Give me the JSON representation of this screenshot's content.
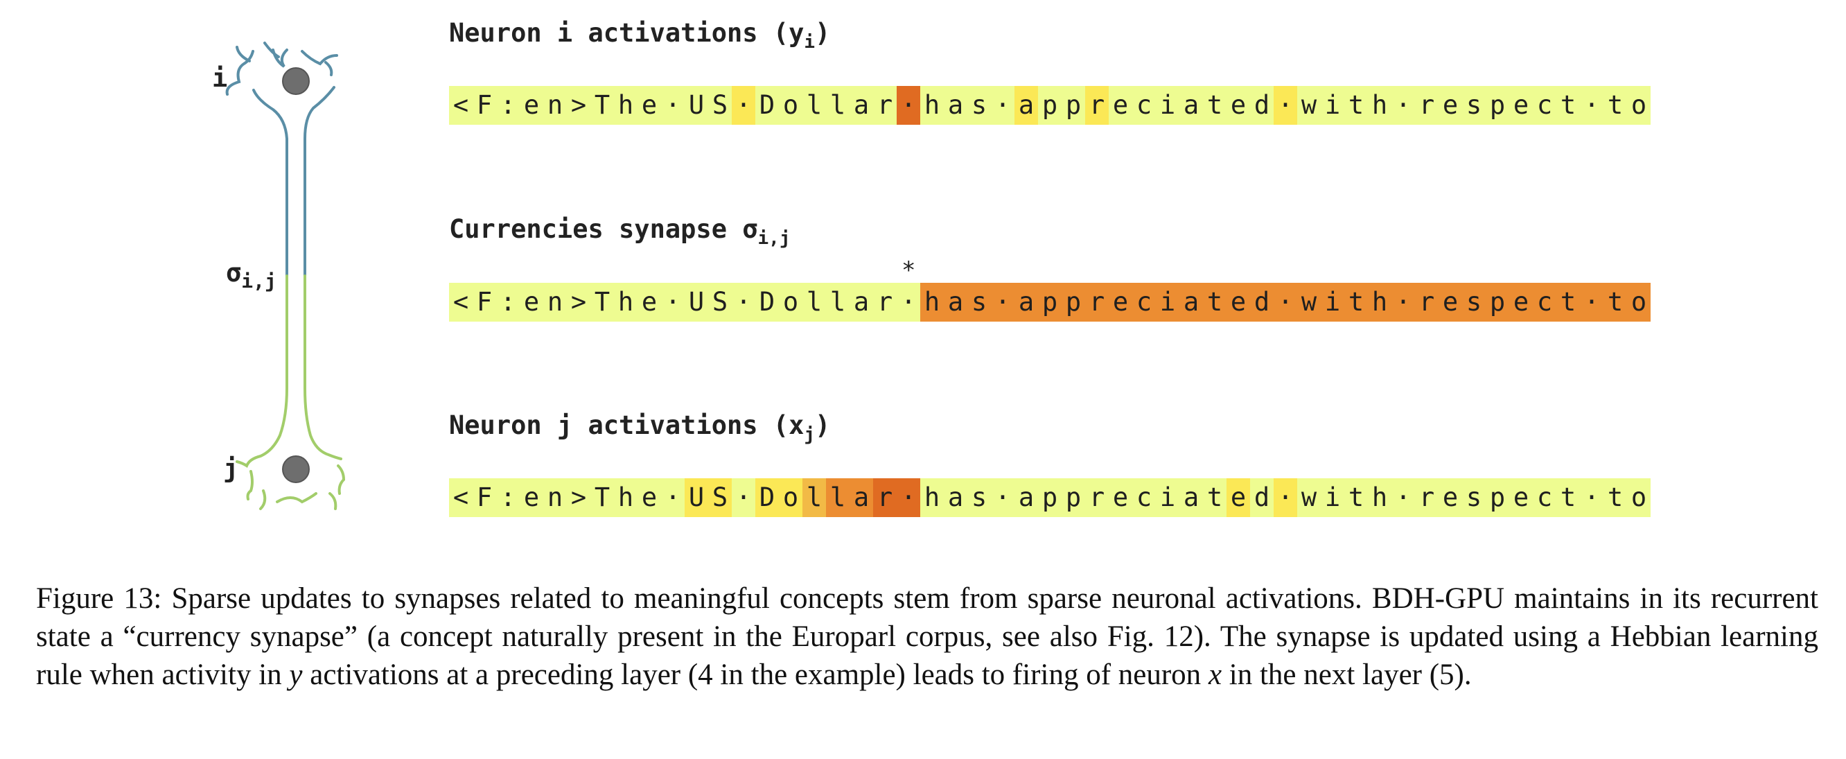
{
  "colors": {
    "base": "#eefc91",
    "mild": "#fbe856",
    "medium": "#f2ba46",
    "strong": "#ec8d32",
    "peak": "#e06b22",
    "axon_top": "#5a8ea6",
    "axon_bottom": "#a2cd6a",
    "soma": "#6e6e6e"
  },
  "neuron": {
    "top_label": "i",
    "mid_label_base": "σ",
    "mid_label_sub": "i,j",
    "bottom_label": "j"
  },
  "tokens": [
    "<",
    "F",
    ":",
    "e",
    "n",
    ">",
    "T",
    "h",
    "e",
    "·",
    "U",
    "S",
    "·",
    "D",
    "o",
    "l",
    "l",
    "a",
    "r",
    "·",
    "h",
    "a",
    "s",
    "·",
    "a",
    "p",
    "p",
    "r",
    "e",
    "c",
    "i",
    "a",
    "t",
    "e",
    "d",
    "·",
    "w",
    "i",
    "t",
    "h",
    "·",
    "r",
    "e",
    "s",
    "p",
    "e",
    "c",
    "t",
    "·",
    "t",
    "o"
  ],
  "rows": [
    {
      "title_base": "Neuron i activations (y",
      "title_sub": "i",
      "title_end": ")",
      "levels": [
        0,
        0,
        0,
        0,
        0,
        0,
        0,
        0,
        0,
        0,
        0,
        0,
        1,
        0,
        0,
        0,
        0,
        0,
        0,
        4,
        0,
        0,
        0,
        0,
        1,
        0,
        0,
        1,
        0,
        0,
        0,
        0,
        0,
        0,
        0,
        1,
        0,
        0,
        0,
        0,
        0,
        0,
        0,
        0,
        0,
        0,
        0,
        0,
        0,
        0,
        0
      ]
    },
    {
      "title_base": "Currencies synapse σ",
      "title_sub": "i,j",
      "title_end": "",
      "marker": "*",
      "marker_index": 19,
      "levels": [
        0,
        0,
        0,
        0,
        0,
        0,
        0,
        0,
        0,
        0,
        0,
        0,
        0,
        0,
        0,
        0,
        0,
        0,
        0,
        0,
        3,
        3,
        3,
        3,
        3,
        3,
        3,
        3,
        3,
        3,
        3,
        3,
        3,
        3,
        3,
        3,
        3,
        3,
        3,
        3,
        3,
        3,
        3,
        3,
        3,
        3,
        3,
        3,
        3,
        3,
        3
      ]
    },
    {
      "title_base": "Neuron j activations (x",
      "title_sub": "j",
      "title_end": ")",
      "levels": [
        0,
        0,
        0,
        0,
        0,
        0,
        0,
        0,
        0,
        0,
        1,
        1,
        0,
        1,
        1,
        2,
        3,
        3,
        4,
        4,
        0,
        0,
        0,
        0,
        0,
        0,
        0,
        0,
        0,
        0,
        0,
        0,
        0,
        1,
        0,
        1,
        0,
        0,
        0,
        0,
        0,
        0,
        0,
        0,
        0,
        0,
        0,
        0,
        0,
        0,
        0
      ]
    }
  ],
  "caption": {
    "figure_label": "Figure 13:",
    "part1": " Sparse updates to synapses related to meaningful concepts stem from sparse neuronal activations. BDH-GPU maintains in its recurrent state a “currency synapse” (a concept naturally present in the Europarl corpus, see also Fig. 12). The synapse is updated using a Hebbian learning rule when activity in ",
    "var_y": "y",
    "part2": " activations at a preceding layer (4 in the example) leads to firing of neuron ",
    "var_x": "x",
    "part3": " in the next layer (5)."
  }
}
